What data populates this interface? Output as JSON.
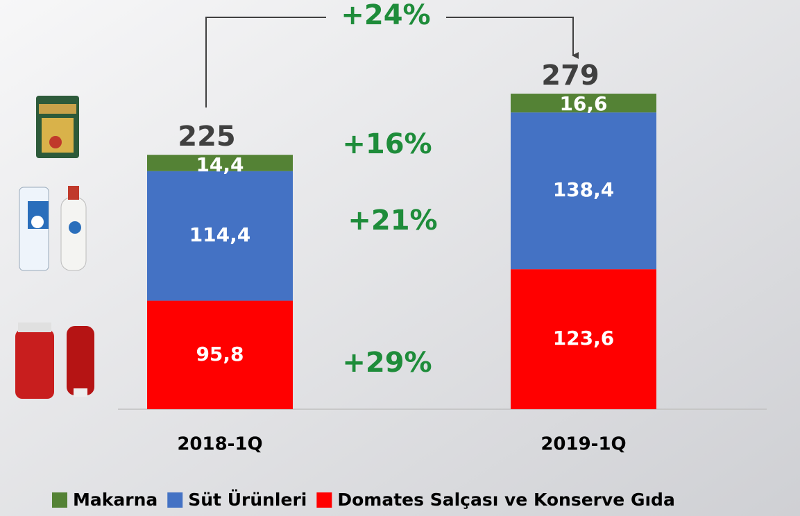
{
  "chart_data": {
    "type": "stacked-bar",
    "categories": [
      "2018-1Q",
      "2019-1Q"
    ],
    "series": [
      {
        "name": "Makarna",
        "color": "#548235",
        "values": [
          14.4,
          16.6
        ],
        "value_labels": [
          "14,4",
          "16,6"
        ]
      },
      {
        "name": "Süt Ürünleri",
        "color": "#4472c4",
        "values": [
          114.4,
          138.4
        ],
        "value_labels": [
          "114,4",
          "138,4"
        ]
      },
      {
        "name": "Domates Salçası ve Konserve Gıda",
        "color": "#ff0000",
        "values": [
          95.8,
          123.6
        ],
        "value_labels": [
          "95,8",
          "123,6"
        ]
      }
    ],
    "totals": [
      225,
      279
    ],
    "annotations": {
      "total_growth": "+24%",
      "growth": [
        "+16%",
        "+21%",
        "+29%"
      ]
    }
  }
}
